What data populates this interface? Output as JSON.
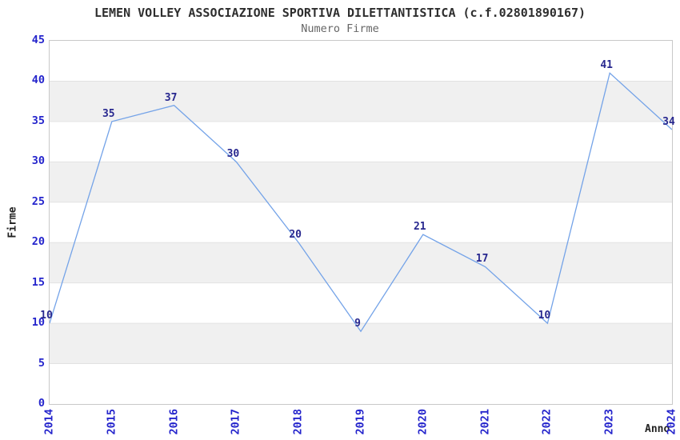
{
  "chart_data": {
    "type": "line",
    "title": "LEMEN VOLLEY ASSOCIAZIONE SPORTIVA DILETTANTISTICA (c.f.02801890167)",
    "subtitle": "Numero Firme",
    "xlabel": "Anno",
    "ylabel": "Firme",
    "x": [
      2014,
      2015,
      2016,
      2017,
      2018,
      2019,
      2020,
      2021,
      2022,
      2023,
      2024
    ],
    "values": [
      10,
      35,
      37,
      30,
      20,
      9,
      21,
      17,
      10,
      41,
      34
    ],
    "ylim": [
      0,
      45
    ],
    "ytick_step": 5,
    "markers": "none",
    "legend": "none",
    "grid": "horizontal-bands",
    "colors": {
      "line": "#74a3e8",
      "tick_labels": "#2424cc",
      "data_labels": "#28288f",
      "band": "#f0f0f0",
      "gridline": "#e2e2e2",
      "plot_border": "#c9c9c9",
      "title": "#2e2e2e",
      "subtitle": "#666666",
      "axis_labels": "#222222",
      "background": "#ffffff"
    }
  }
}
